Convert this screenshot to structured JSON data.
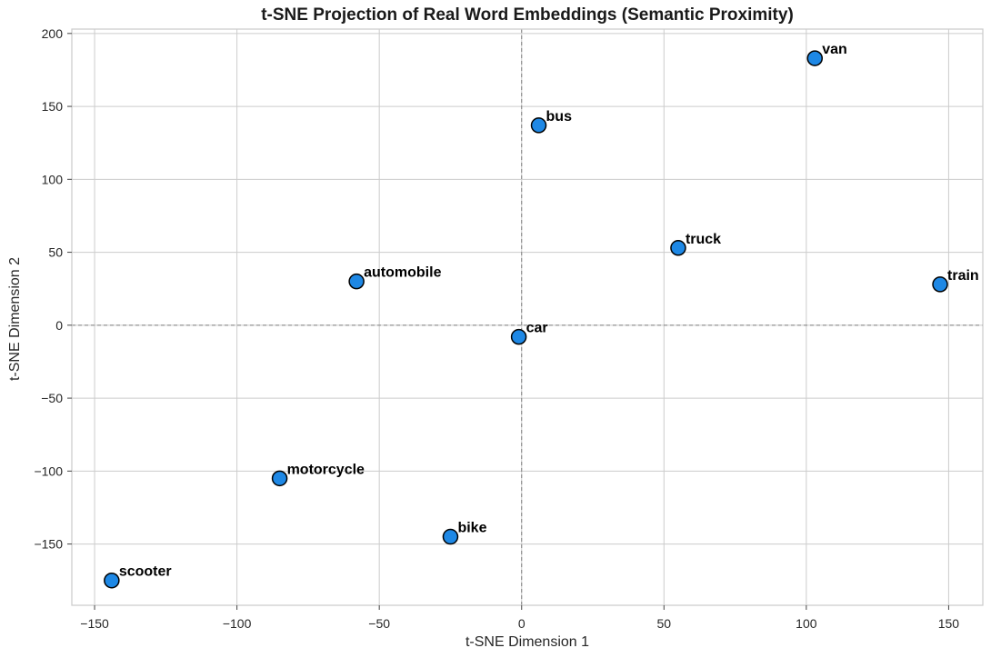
{
  "chart_data": {
    "type": "scatter",
    "title": "t-SNE Projection of Real Word Embeddings (Semantic Proximity)",
    "xlabel": "t-SNE Dimension 1",
    "ylabel": "t-SNE Dimension 2",
    "xlim": [
      -158,
      162
    ],
    "ylim": [
      -192,
      203
    ],
    "xticks": [
      -150,
      -100,
      -50,
      0,
      50,
      100,
      150
    ],
    "xtick_labels": [
      "−150",
      "−100",
      "−50",
      "0",
      "50",
      "100",
      "150"
    ],
    "yticks": [
      -150,
      -100,
      -50,
      0,
      50,
      100,
      150,
      200
    ],
    "ytick_labels": [
      "−150",
      "−100",
      "−50",
      "0",
      "50",
      "100",
      "150",
      "200"
    ],
    "grid": true,
    "zero_lines": true,
    "marker_color": "#1e88e5",
    "marker_edge_color": "#000000",
    "points": [
      {
        "label": "van",
        "x": 103,
        "y": 183
      },
      {
        "label": "bus",
        "x": 6,
        "y": 137
      },
      {
        "label": "truck",
        "x": 55,
        "y": 53
      },
      {
        "label": "train",
        "x": 147,
        "y": 28
      },
      {
        "label": "automobile",
        "x": -58,
        "y": 30
      },
      {
        "label": "car",
        "x": -1,
        "y": -8
      },
      {
        "label": "motorcycle",
        "x": -85,
        "y": -105
      },
      {
        "label": "bike",
        "x": -25,
        "y": -145
      },
      {
        "label": "scooter",
        "x": -144,
        "y": -175
      }
    ]
  }
}
